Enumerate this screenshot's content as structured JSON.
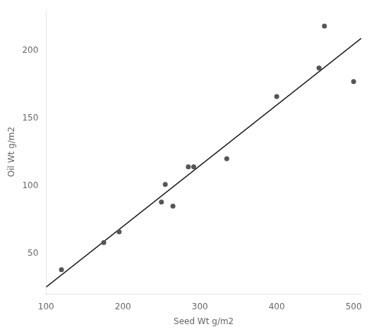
{
  "chart_data": {
    "type": "scatter",
    "xlabel": "Seed Wt g/m2",
    "ylabel": "Oil Wt g/m2",
    "series": [
      {
        "type": "scatter",
        "color": "#555555",
        "marker": "circle",
        "x": [
          120,
          175,
          195,
          250,
          255,
          265,
          285,
          292,
          335,
          400,
          455,
          462,
          500
        ],
        "values": [
          38,
          58,
          66,
          88,
          101,
          85,
          114,
          114,
          120,
          166,
          187,
          218,
          177
        ]
      },
      {
        "type": "line",
        "color": "#111111",
        "line_style": "solid",
        "x": [
          100,
          510
        ],
        "values": [
          25.06,
          208.97
        ]
      }
    ],
    "xlim": [
      100,
      510
    ],
    "ylim": [
      20,
      230
    ],
    "xticks": [
      100,
      200,
      300,
      400,
      500
    ],
    "yticks": [
      50,
      100,
      150,
      200
    ],
    "grid": false
  }
}
